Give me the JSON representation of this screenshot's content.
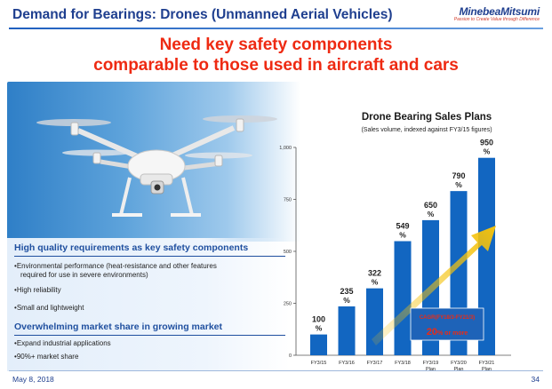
{
  "header": {
    "title": "Demand for Bearings: Drones (Unmanned Aerial Vehicles)",
    "logo_name": "MinebeaMitsumi",
    "logo_tagline": "Passion to Create Value through Difference"
  },
  "headline": {
    "line1": "Need key safety components",
    "line2": "comparable to those used in aircraft and cars"
  },
  "left_panel": {
    "section1_title": "High quality requirements as key safety components",
    "section1_bullets": [
      "Environmental performance (heat-resistance and other features",
      "required for use in severe environments)",
      "High reliability",
      "Small and lightweight"
    ],
    "section2_title": "Overwhelming market share in growing market",
    "section2_bullets": [
      "Expand industrial applications",
      "90%+ market share"
    ]
  },
  "footer": {
    "date": "May 8, 2018",
    "page": "34"
  },
  "colors": {
    "bar": "#1266c1",
    "accent_red": "#ee2a12",
    "title_blue": "#1f3f8f",
    "arrow_yellow": "#f4c20d"
  },
  "chart_data": {
    "type": "bar",
    "title": "Drone Bearing Sales Plans",
    "subtitle": "(Sales volume, indexed against FY3/15 figures)",
    "categories": [
      [
        "FY3/15"
      ],
      [
        "FY3/16"
      ],
      [
        "FY3/17"
      ],
      [
        "FY3/18"
      ],
      [
        "FY3/19",
        "Plan"
      ],
      [
        "FY3/20",
        "Plan"
      ],
      [
        "FY3/21",
        "Plan"
      ]
    ],
    "values": [
      100,
      235,
      322,
      549,
      650,
      790,
      950
    ],
    "value_labels": [
      "100",
      "235",
      "322",
      "549",
      "650",
      "790",
      "950"
    ],
    "value_unit": "%",
    "ylim": [
      0,
      1000
    ],
    "yticks": [
      0,
      250,
      500,
      750,
      1000
    ],
    "ytick_labels": [
      "0",
      "250",
      "500",
      "750",
      "1,000"
    ],
    "xlabel": "",
    "ylabel": "",
    "grid": false,
    "annotation": {
      "label": "CAGR(FY18/3-FY21/3)",
      "value": "20",
      "suffix": "% or more"
    }
  }
}
